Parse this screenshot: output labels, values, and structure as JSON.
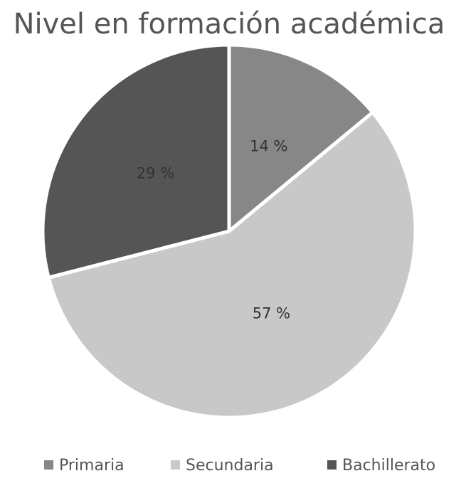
{
  "chart_data": {
    "type": "pie",
    "title": "Nivel en formación académica",
    "categories": [
      "Primaria",
      "Secundaria",
      "Bachillerato"
    ],
    "values": [
      14,
      57,
      29
    ],
    "value_labels": [
      "14 %",
      "57 %",
      "29 %"
    ],
    "colors": [
      "#878787",
      "#c8c8c8",
      "#555555"
    ],
    "legend": "bottom"
  }
}
